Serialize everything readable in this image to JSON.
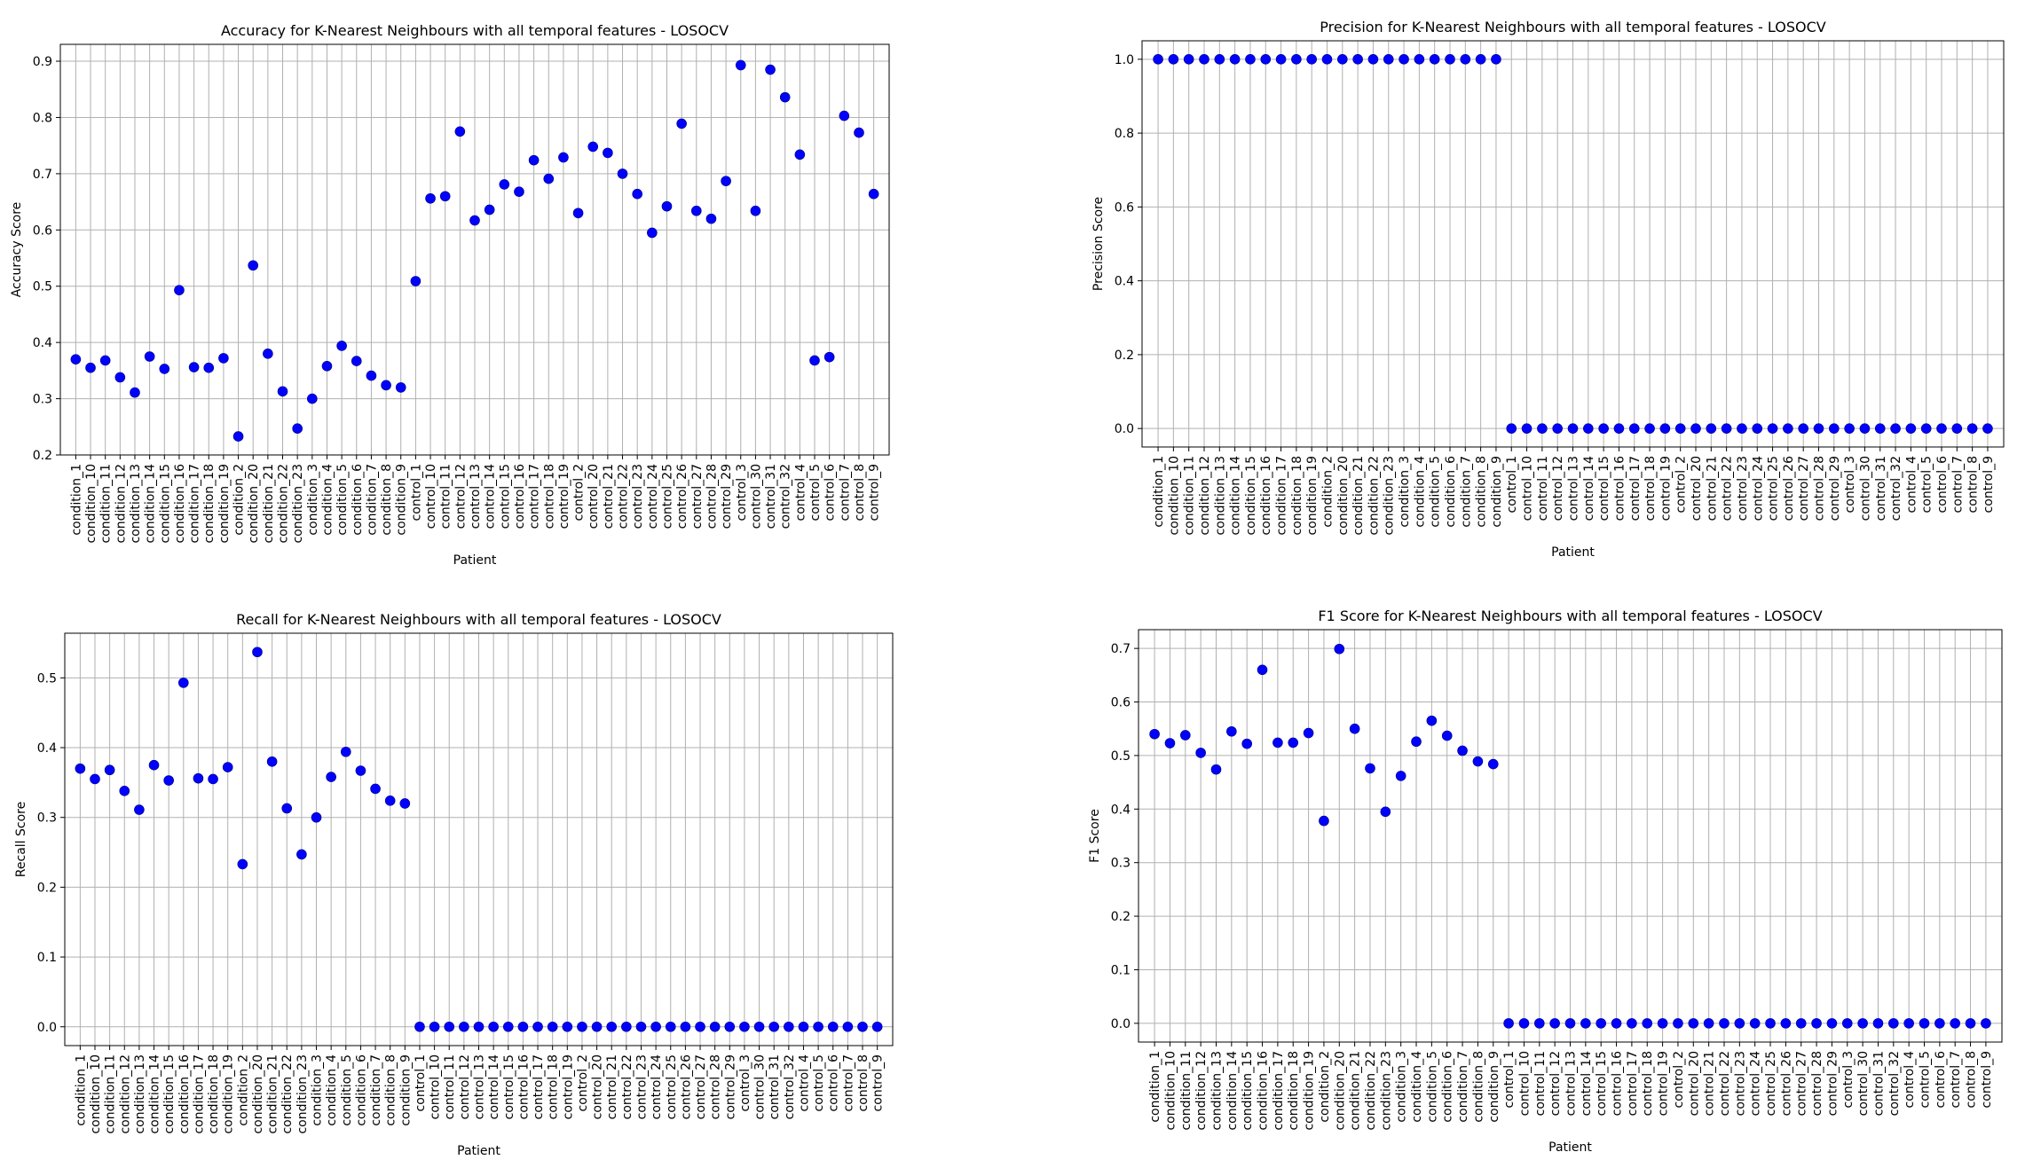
{
  "patients": [
    "condition_1",
    "condition_10",
    "condition_11",
    "condition_12",
    "condition_13",
    "condition_14",
    "condition_15",
    "condition_16",
    "condition_17",
    "condition_18",
    "condition_19",
    "condition_2",
    "condition_20",
    "condition_21",
    "condition_22",
    "condition_23",
    "condition_3",
    "condition_4",
    "condition_5",
    "condition_6",
    "condition_7",
    "condition_8",
    "condition_9",
    "control_1",
    "control_10",
    "control_11",
    "control_12",
    "control_13",
    "control_14",
    "control_15",
    "control_16",
    "control_17",
    "control_18",
    "control_19",
    "control_2",
    "control_20",
    "control_21",
    "control_22",
    "control_23",
    "control_24",
    "control_25",
    "control_26",
    "control_27",
    "control_28",
    "control_29",
    "control_3",
    "control_30",
    "control_31",
    "control_32",
    "control_4",
    "control_5",
    "control_6",
    "control_7",
    "control_8",
    "control_9"
  ],
  "marker_color": "#0000ff",
  "chart_data": [
    {
      "type": "scatter",
      "title": "Accuracy for K-Nearest Neighbours with all temporal features - LOSOCV",
      "xlabel": "Patient",
      "ylabel": "Accuracy Score",
      "ylim": [
        0.2,
        0.93
      ],
      "yticks": [
        "0.2",
        "0.3",
        "0.4",
        "0.5",
        "0.6",
        "0.7",
        "0.8",
        "0.9"
      ],
      "grid": true,
      "values": [
        0.37,
        0.355,
        0.368,
        0.338,
        0.311,
        0.375,
        0.353,
        0.493,
        0.356,
        0.355,
        0.372,
        0.233,
        0.537,
        0.38,
        0.313,
        0.247,
        0.3,
        0.358,
        0.394,
        0.367,
        0.341,
        0.324,
        0.32,
        0.509,
        0.656,
        0.66,
        0.775,
        0.617,
        0.636,
        0.681,
        0.668,
        0.724,
        0.691,
        0.729,
        0.63,
        0.748,
        0.737,
        0.7,
        0.664,
        0.595,
        0.642,
        0.789,
        0.634,
        0.62,
        0.687,
        0.893,
        0.634,
        0.885,
        0.836,
        0.734,
        0.368,
        0.374,
        0.803,
        0.773,
        0.664
      ]
    },
    {
      "type": "scatter",
      "title": "Precision for K-Nearest Neighbours with all temporal features - LOSOCV",
      "xlabel": "Patient",
      "ylabel": "Precision Score",
      "ylim": [
        -0.05,
        1.05
      ],
      "yticks": [
        "0.0",
        "0.2",
        "0.4",
        "0.6",
        "0.8",
        "1.0"
      ],
      "grid": true,
      "values": [
        1,
        1,
        1,
        1,
        1,
        1,
        1,
        1,
        1,
        1,
        1,
        1,
        1,
        1,
        1,
        1,
        1,
        1,
        1,
        1,
        1,
        1,
        1,
        0,
        0,
        0,
        0,
        0,
        0,
        0,
        0,
        0,
        0,
        0,
        0,
        0,
        0,
        0,
        0,
        0,
        0,
        0,
        0,
        0,
        0,
        0,
        0,
        0,
        0,
        0,
        0,
        0,
        0,
        0,
        0
      ]
    },
    {
      "type": "scatter",
      "title": "Recall for K-Nearest Neighbours with all temporal features - LOSOCV",
      "xlabel": "Patient",
      "ylabel": "Recall Score",
      "ylim": [
        -0.027,
        0.564
      ],
      "yticks": [
        "0.0",
        "0.1",
        "0.2",
        "0.3",
        "0.4",
        "0.5"
      ],
      "grid": true,
      "values": [
        0.37,
        0.355,
        0.368,
        0.338,
        0.311,
        0.375,
        0.353,
        0.493,
        0.356,
        0.355,
        0.372,
        0.233,
        0.537,
        0.38,
        0.313,
        0.247,
        0.3,
        0.358,
        0.394,
        0.367,
        0.341,
        0.324,
        0.32,
        0,
        0,
        0,
        0,
        0,
        0,
        0,
        0,
        0,
        0,
        0,
        0,
        0,
        0,
        0,
        0,
        0,
        0,
        0,
        0,
        0,
        0,
        0,
        0,
        0,
        0,
        0,
        0,
        0,
        0,
        0,
        0
      ]
    },
    {
      "type": "scatter",
      "title": "F1 Score for K-Nearest Neighbours with all temporal features - LOSOCV",
      "xlabel": "Patient",
      "ylabel": "F1 Score",
      "ylim": [
        -0.035,
        0.735
      ],
      "yticks": [
        "0.0",
        "0.1",
        "0.2",
        "0.3",
        "0.4",
        "0.5",
        "0.6",
        "0.7"
      ],
      "grid": true,
      "values": [
        0.54,
        0.523,
        0.538,
        0.505,
        0.474,
        0.545,
        0.522,
        0.66,
        0.524,
        0.524,
        0.542,
        0.378,
        0.699,
        0.55,
        0.476,
        0.395,
        0.462,
        0.526,
        0.565,
        0.537,
        0.509,
        0.489,
        0.484,
        0,
        0,
        0,
        0,
        0,
        0,
        0,
        0,
        0,
        0,
        0,
        0,
        0,
        0,
        0,
        0,
        0,
        0,
        0,
        0,
        0,
        0,
        0,
        0,
        0,
        0,
        0,
        0,
        0,
        0,
        0,
        0
      ]
    }
  ]
}
